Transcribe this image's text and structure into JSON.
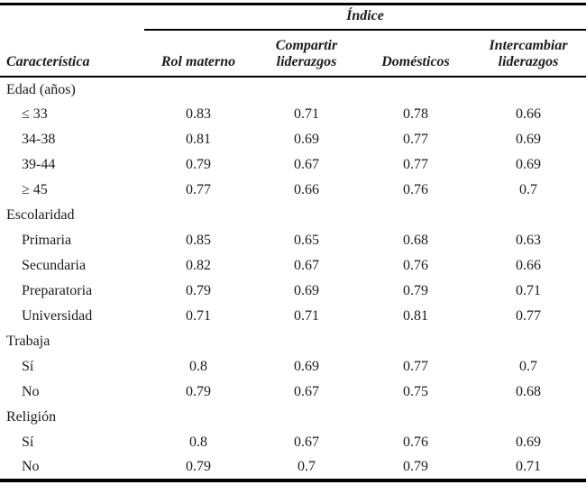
{
  "chart_data": {
    "type": "table",
    "index_header": "Índice",
    "columns": [
      "Característica",
      "Rol materno",
      "Compartir liderazgos",
      "Domésticos",
      "Intercambiar liderazgos"
    ],
    "sections": [
      {
        "label": "Edad (años)",
        "rows": [
          {
            "label": "≤ 33",
            "values": [
              "0.83",
              "0.71",
              "0.78",
              "0.66"
            ]
          },
          {
            "label": "34-38",
            "values": [
              "0.81",
              "0.69",
              "0.77",
              "0.69"
            ]
          },
          {
            "label": "39-44",
            "values": [
              "0.79",
              "0.67",
              "0.77",
              "0.69"
            ]
          },
          {
            "label": "≥ 45",
            "values": [
              "0.77",
              "0.66",
              "0.76",
              "0.7"
            ]
          }
        ]
      },
      {
        "label": "Escolaridad",
        "rows": [
          {
            "label": "Primaria",
            "values": [
              "0.85",
              "0.65",
              "0.68",
              "0.63"
            ]
          },
          {
            "label": "Secundaria",
            "values": [
              "0.82",
              "0.67",
              "0.76",
              "0.66"
            ]
          },
          {
            "label": "Preparatoria",
            "values": [
              "0.79",
              "0.69",
              "0.79",
              "0.71"
            ]
          },
          {
            "label": "Universidad",
            "values": [
              "0.71",
              "0.71",
              "0.81",
              "0.77"
            ]
          }
        ]
      },
      {
        "label": "Trabaja",
        "rows": [
          {
            "label": "Sí",
            "values": [
              "0.8",
              "0.69",
              "0.77",
              "0.7"
            ]
          },
          {
            "label": "No",
            "values": [
              "0.79",
              "0.67",
              "0.75",
              "0.68"
            ]
          }
        ]
      },
      {
        "label": "Religión",
        "rows": [
          {
            "label": "Sí",
            "values": [
              "0.8",
              "0.67",
              "0.76",
              "0.69"
            ]
          },
          {
            "label": "No",
            "values": [
              "0.79",
              "0.7",
              "0.79",
              "0.71"
            ]
          }
        ]
      }
    ],
    "style": {
      "text_color": "#1b1b1b",
      "rule_color": "#000000",
      "background": "#ffffff"
    }
  }
}
